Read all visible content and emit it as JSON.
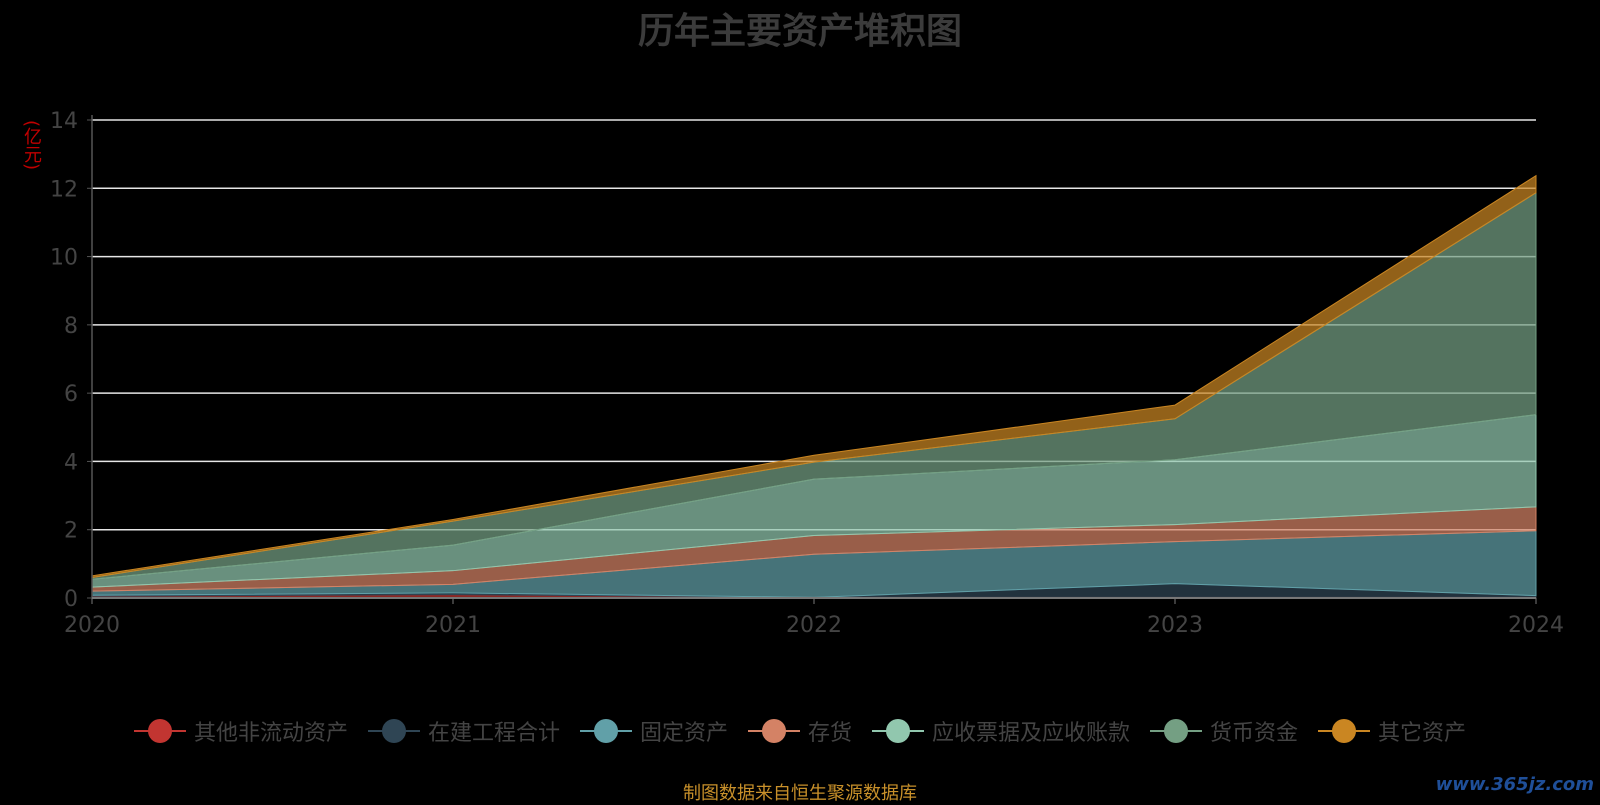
{
  "chart_data": {
    "type": "area",
    "title": "历年主要资产堆积图",
    "ylabel": "(亿元)",
    "xlabel": "",
    "x": [
      "2020",
      "2021",
      "2022",
      "2023",
      "2024"
    ],
    "ylim": [
      0,
      14
    ],
    "yticks": [
      0,
      2,
      4,
      6,
      8,
      10,
      12,
      14
    ],
    "stacked": true,
    "grid": true,
    "legend_position": "bottom",
    "series": [
      {
        "name": "其他非流动资产",
        "color": "#c23531",
        "values": [
          0.05,
          0.1,
          0.02,
          0.02,
          0.02
        ]
      },
      {
        "name": "在建工程合计",
        "color": "#2f4554",
        "values": [
          0.03,
          0.05,
          0.0,
          0.4,
          0.05
        ]
      },
      {
        "name": "固定资产",
        "color": "#61a0a8",
        "values": [
          0.12,
          0.25,
          1.26,
          1.23,
          1.9
        ]
      },
      {
        "name": "存货",
        "color": "#d48265",
        "values": [
          0.12,
          0.4,
          0.55,
          0.5,
          0.7
        ]
      },
      {
        "name": "应收票据及应收账款",
        "color": "#91c7ae",
        "values": [
          0.23,
          0.75,
          1.65,
          1.9,
          2.7
        ]
      },
      {
        "name": "货币资金",
        "color": "#749f83",
        "values": [
          0.05,
          0.7,
          0.5,
          1.2,
          6.5
        ]
      },
      {
        "name": "其它资产",
        "color": "#ca8622",
        "values": [
          0.05,
          0.05,
          0.2,
          0.4,
          0.5
        ]
      }
    ]
  },
  "footer": {
    "source": "制图数据来自恒生聚源数据库",
    "watermark": "www.365jz.com"
  }
}
